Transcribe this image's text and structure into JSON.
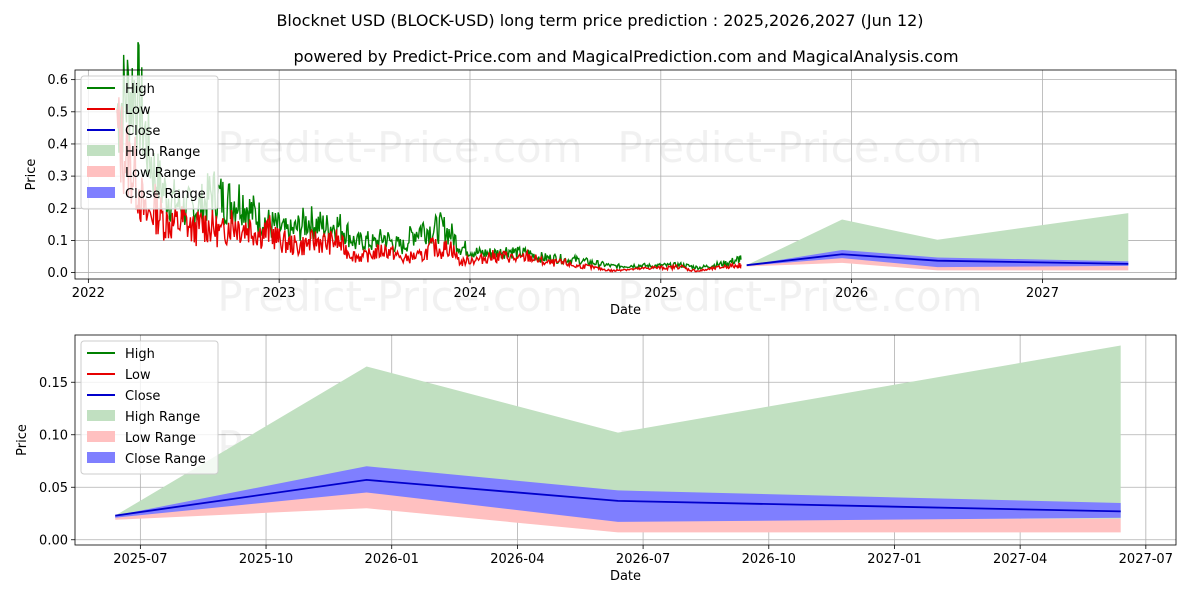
{
  "title": "Blocknet USD (BLOCK-USD) long term price prediction : 2025,2026,2027 (Jun 12)",
  "subtitle": "powered by Predict-Price.com and MagicalPrediction.com and MagicalAnalysis.com",
  "watermark": "Predict-Price.com",
  "colors": {
    "high": "#008000",
    "low": "#e60000",
    "close": "#0000cc",
    "high_range": "#c1e0c1",
    "low_range": "#ffc0c0",
    "close_range": "#7f7fff"
  },
  "chart_data": [
    {
      "type": "line",
      "title": "Blocknet USD (BLOCK-USD) long term price prediction : 2025,2026,2027 (Jun 12)",
      "xlabel": "Date",
      "ylabel": "Price",
      "xlim": [
        2021.93,
        2027.7
      ],
      "ylim": [
        -0.02,
        0.63
      ],
      "x_ticks": [
        2022,
        2023,
        2024,
        2025,
        2026,
        2027
      ],
      "x_tick_labels": [
        "2022",
        "2023",
        "2024",
        "2025",
        "2026",
        "2027"
      ],
      "y_ticks": [
        0.0,
        0.1,
        0.2,
        0.3,
        0.4,
        0.5,
        0.6
      ],
      "y_tick_labels": [
        "0.0",
        "0.1",
        "0.2",
        "0.3",
        "0.4",
        "0.5",
        "0.6"
      ],
      "grid": true,
      "legend": "upper left",
      "legend_entries": [
        "High",
        "Low",
        "Close",
        "High Range",
        "Low Range",
        "Close Range"
      ],
      "history": {
        "x": [
          2022.15,
          2022.2,
          2022.25,
          2022.3,
          2022.35,
          2022.4,
          2022.45,
          2022.5,
          2022.55,
          2022.6,
          2022.65,
          2022.7,
          2022.75,
          2022.8,
          2022.85,
          2022.9,
          2022.95,
          2023.0,
          2023.05,
          2023.1,
          2023.15,
          2023.2,
          2023.25,
          2023.3,
          2023.35,
          2023.4,
          2023.45,
          2023.5,
          2023.55,
          2023.6,
          2023.65,
          2023.7,
          2023.75,
          2023.8,
          2023.85,
          2023.9,
          2023.95,
          2024.0,
          2024.05,
          2024.1,
          2024.15,
          2024.2,
          2024.25,
          2024.3,
          2024.35,
          2024.4,
          2024.45,
          2024.5,
          2024.55,
          2024.6,
          2024.65,
          2024.7,
          2024.75,
          2024.8,
          2024.85,
          2024.9,
          2024.95,
          2025.0,
          2025.05,
          2025.1,
          2025.15,
          2025.2,
          2025.25,
          2025.3,
          2025.35,
          2025.4,
          2025.42
        ],
        "high": [
          0.5,
          0.55,
          0.58,
          0.42,
          0.3,
          0.25,
          0.22,
          0.2,
          0.2,
          0.21,
          0.25,
          0.23,
          0.22,
          0.23,
          0.19,
          0.17,
          0.15,
          0.14,
          0.12,
          0.14,
          0.16,
          0.15,
          0.14,
          0.15,
          0.13,
          0.09,
          0.1,
          0.09,
          0.11,
          0.09,
          0.08,
          0.12,
          0.14,
          0.13,
          0.14,
          0.12,
          0.08,
          0.07,
          0.06,
          0.06,
          0.06,
          0.07,
          0.06,
          0.06,
          0.05,
          0.045,
          0.045,
          0.04,
          0.04,
          0.035,
          0.03,
          0.025,
          0.02,
          0.02,
          0.022,
          0.022,
          0.02,
          0.022,
          0.022,
          0.024,
          0.02,
          0.015,
          0.02,
          0.025,
          0.03,
          0.04,
          0.04
        ],
        "low": [
          0.43,
          0.36,
          0.3,
          0.17,
          0.2,
          0.16,
          0.15,
          0.16,
          0.13,
          0.15,
          0.14,
          0.12,
          0.16,
          0.14,
          0.14,
          0.12,
          0.13,
          0.1,
          0.09,
          0.08,
          0.09,
          0.1,
          0.09,
          0.1,
          0.07,
          0.05,
          0.05,
          0.06,
          0.07,
          0.06,
          0.04,
          0.05,
          0.05,
          0.08,
          0.07,
          0.08,
          0.03,
          0.04,
          0.04,
          0.05,
          0.05,
          0.05,
          0.04,
          0.05,
          0.04,
          0.03,
          0.03,
          0.03,
          0.02,
          0.02,
          0.015,
          0.01,
          0.005,
          0.01,
          0.01,
          0.012,
          0.015,
          0.015,
          0.015,
          0.02,
          0.008,
          0.005,
          0.01,
          0.015,
          0.02,
          0.02,
          0.025
        ]
      },
      "forecast": {
        "x": [
          2025.45,
          2025.95,
          2026.45,
          2027.45
        ],
        "high_range_upper": [
          0.023,
          0.165,
          0.102,
          0.185
        ],
        "close": [
          0.023,
          0.057,
          0.037,
          0.027
        ],
        "close_range_upper": [
          0.023,
          0.07,
          0.047,
          0.035
        ],
        "close_range_lower": [
          0.021,
          0.045,
          0.017,
          0.021
        ],
        "low_range_upper": [
          0.021,
          0.048,
          0.02,
          0.02
        ],
        "low_range_lower": [
          0.019,
          0.03,
          0.007,
          0.007
        ]
      }
    },
    {
      "type": "line",
      "xlabel": "Date",
      "ylabel": "Price",
      "xlim": [
        2025.37,
        2027.56
      ],
      "ylim": [
        -0.005,
        0.195
      ],
      "x_ticks": [
        2025.5,
        2025.75,
        2026.0,
        2026.25,
        2026.5,
        2026.75,
        2027.0,
        2027.25,
        2027.5
      ],
      "x_tick_labels": [
        "2025-07",
        "2025-10",
        "2026-01",
        "2026-04",
        "2026-07",
        "2026-10",
        "2027-01",
        "2027-04",
        "2027-07"
      ],
      "y_ticks": [
        0.0,
        0.05,
        0.1,
        0.15
      ],
      "y_tick_labels": [
        "0.00",
        "0.05",
        "0.10",
        "0.15"
      ],
      "grid": true,
      "legend": "upper left",
      "legend_entries": [
        "High",
        "Low",
        "Close",
        "High Range",
        "Low Range",
        "Close Range"
      ],
      "forecast": {
        "x": [
          2025.45,
          2025.95,
          2026.45,
          2027.45
        ],
        "high_range_upper": [
          0.023,
          0.165,
          0.102,
          0.185
        ],
        "close": [
          0.023,
          0.057,
          0.037,
          0.027
        ],
        "close_range_upper": [
          0.023,
          0.07,
          0.047,
          0.035
        ],
        "close_range_lower": [
          0.021,
          0.045,
          0.017,
          0.021
        ],
        "low_range_upper": [
          0.021,
          0.048,
          0.02,
          0.02
        ],
        "low_range_lower": [
          0.019,
          0.03,
          0.007,
          0.007
        ]
      }
    }
  ]
}
